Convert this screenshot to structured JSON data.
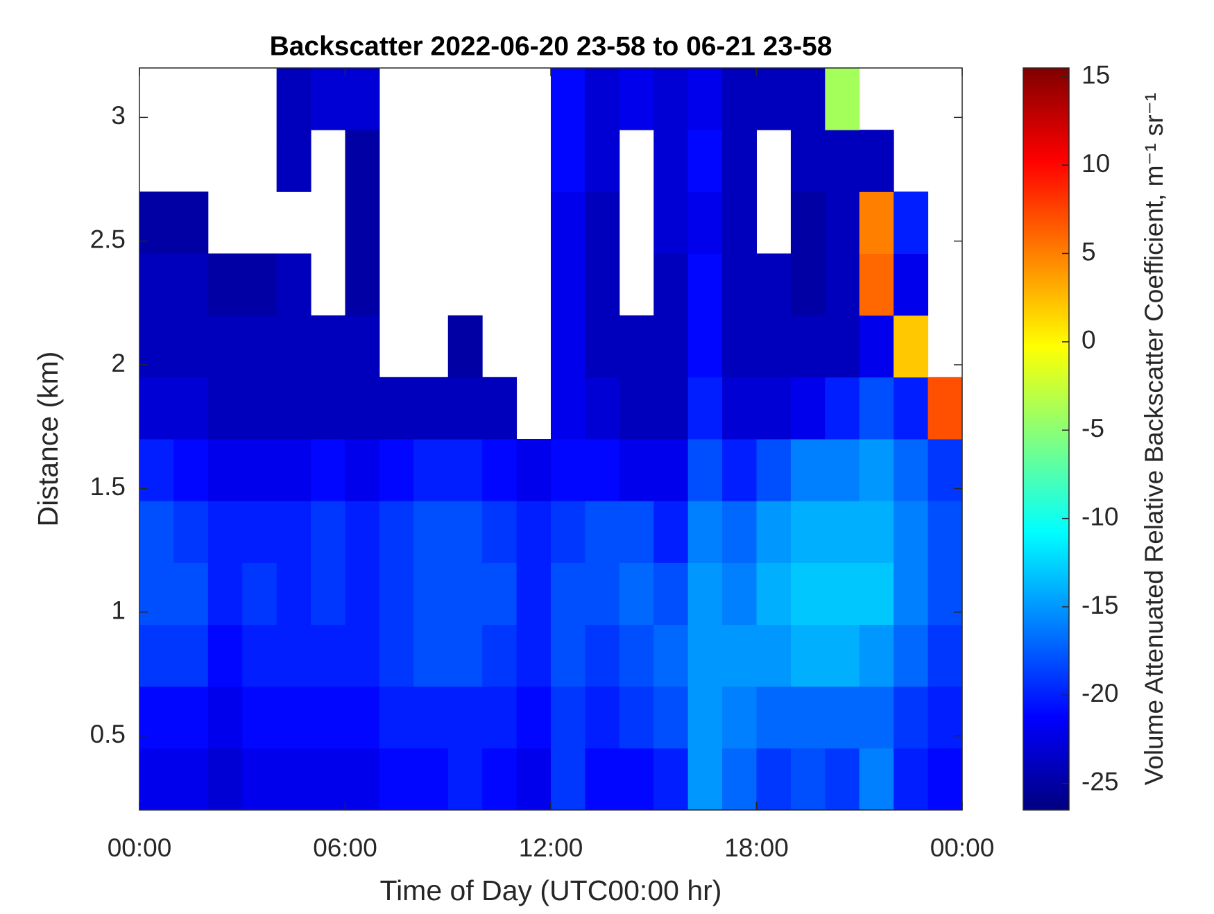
{
  "chart_data": {
    "type": "heatmap",
    "title": "Backscatter 2022-06-20 23-58 to 06-21 23-58",
    "xlabel": "Time of Day (UTC00:00 hr)",
    "ylabel": "Distance (km)",
    "colorbar_label": "Volume Attenuated Relative Backscatter Coefficient, m⁻¹ sr⁻¹",
    "colormap": "jet",
    "x": [
      0.5,
      1.5,
      2.5,
      3.5,
      4.5,
      5.5,
      6.5,
      7.5,
      8.5,
      9.5,
      10.5,
      11.5,
      12.5,
      13.5,
      14.5,
      15.5,
      16.5,
      17.5,
      18.5,
      19.5,
      20.5,
      21.5,
      22.5,
      23.5
    ],
    "y": [
      0.325,
      0.575,
      0.825,
      1.075,
      1.325,
      1.575,
      1.825,
      2.075,
      2.325,
      2.575,
      2.825,
      3.075
    ],
    "xlim": [
      0,
      24
    ],
    "ylim": [
      0.2,
      3.2
    ],
    "clim": [
      -26.5,
      15.5
    ],
    "xticks": [
      {
        "value": 0,
        "label": "00:00"
      },
      {
        "value": 6,
        "label": "06:00"
      },
      {
        "value": 12,
        "label": "12:00"
      },
      {
        "value": 18,
        "label": "18:00"
      },
      {
        "value": 24,
        "label": "00:00"
      }
    ],
    "yticks": [
      0.5,
      1,
      1.5,
      2,
      2.5,
      3
    ],
    "cticks": [
      -25,
      -20,
      -15,
      -10,
      -5,
      0,
      5,
      10,
      15
    ],
    "values": [
      [
        -22,
        -22,
        -23,
        -22,
        -22,
        -22,
        -22,
        -21,
        -21,
        -20,
        -21,
        -22,
        -19,
        -21,
        -21,
        -20,
        -15,
        -17,
        -19,
        -18,
        -19,
        -16,
        -20,
        -21
      ],
      [
        -21,
        -21,
        -22,
        -21,
        -21,
        -21,
        -21,
        -20,
        -20,
        -20,
        -20,
        -21,
        -19,
        -20,
        -19,
        -18,
        -15,
        -16,
        -17,
        -17,
        -17,
        -17,
        -19,
        -20
      ],
      [
        -19,
        -19,
        -21,
        -20,
        -20,
        -20,
        -20,
        -19,
        -18,
        -18,
        -19,
        -20,
        -18,
        -19,
        -18,
        -17,
        -15,
        -15,
        -15,
        -14,
        -14,
        -15,
        -17,
        -19
      ],
      [
        -18,
        -18,
        -20,
        -19,
        -20,
        -19,
        -20,
        -19,
        -18,
        -18,
        -18,
        -20,
        -18,
        -18,
        -17,
        -18,
        -15,
        -16,
        -14,
        -13,
        -13,
        -13,
        -16,
        -18
      ],
      [
        -18,
        -19,
        -20,
        -20,
        -20,
        -19,
        -20,
        -19,
        -18,
        -18,
        -19,
        -20,
        -19,
        -18,
        -18,
        -20,
        -16,
        -17,
        -15,
        -14,
        -14,
        -14,
        -16,
        -18
      ],
      [
        -20,
        -21,
        -22,
        -22,
        -22,
        -21,
        -22,
        -21,
        -20,
        -20,
        -21,
        -22,
        -21,
        -21,
        -22,
        -22,
        -18,
        -20,
        -18,
        -16,
        -16,
        -15,
        -17,
        -19
      ],
      [
        -23,
        -23,
        -24,
        -24,
        -24,
        -24,
        -24,
        -24,
        -24,
        -24,
        -24,
        null,
        -22,
        -23,
        -24,
        -24,
        -20,
        -23,
        -23,
        -22,
        -20,
        -18,
        -20,
        7
      ],
      [
        -24,
        -24,
        -24,
        -24,
        -24,
        -24,
        -24,
        null,
        null,
        -25,
        null,
        null,
        -22,
        -24,
        -24,
        -24,
        -21,
        -24,
        -24,
        -24,
        -24,
        -22,
        2,
        null
      ],
      [
        -24,
        -24,
        -25,
        -25,
        -24,
        null,
        -25,
        null,
        null,
        null,
        null,
        null,
        -22,
        -24,
        null,
        -24,
        -21,
        -24,
        -24,
        -25,
        -24,
        6,
        -22,
        null
      ],
      [
        -25,
        -25,
        null,
        null,
        null,
        null,
        -25,
        null,
        null,
        null,
        null,
        null,
        -22,
        -24,
        null,
        -23,
        -22,
        -24,
        null,
        -25,
        -24,
        5,
        -20,
        null
      ],
      [
        null,
        null,
        null,
        null,
        -24,
        null,
        -25,
        null,
        null,
        null,
        null,
        null,
        -21,
        -23,
        null,
        -23,
        -21,
        -24,
        null,
        -24,
        -24,
        -24,
        null,
        null
      ],
      [
        null,
        null,
        null,
        null,
        -24,
        -23,
        -23,
        null,
        null,
        null,
        null,
        null,
        -21,
        -23,
        -22,
        -23,
        -22,
        -24,
        -24,
        -24,
        -4,
        null,
        null,
        null
      ]
    ]
  }
}
